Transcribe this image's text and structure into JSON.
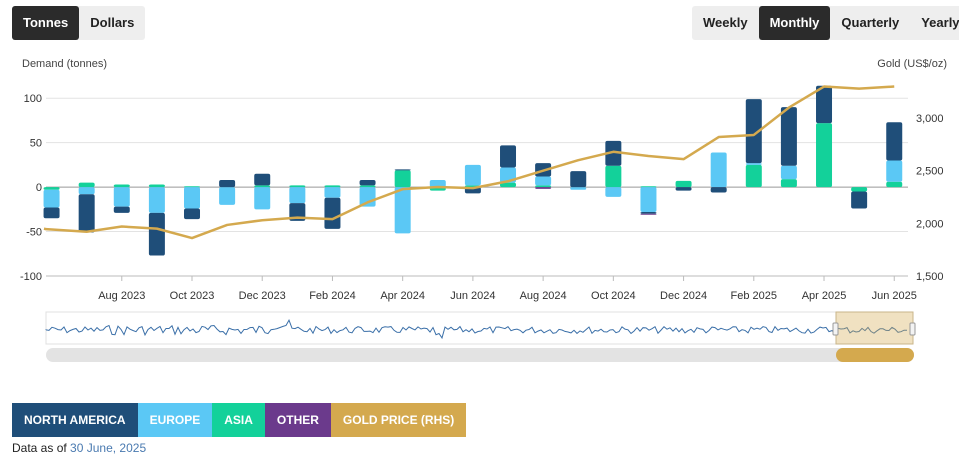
{
  "unit_toggle": {
    "tonnes": "Tonnes",
    "dollars": "Dollars",
    "selected": "Tonnes"
  },
  "period_toggle": {
    "weekly": "Weekly",
    "monthly": "Monthly",
    "quarterly": "Quarterly",
    "yearly": "Yearly",
    "selected": "Monthly"
  },
  "legend": {
    "north_america": "NORTH AMERICA",
    "europe": "EUROPE",
    "asia": "ASIA",
    "other": "OTHER",
    "gold_price": "GOLD PRICE (RHS)"
  },
  "footer": {
    "prefix": "Data as of",
    "date": "30 June, 2025"
  },
  "colors": {
    "north_america": "#1f4e79",
    "europe": "#5bc8f5",
    "asia": "#13d19a",
    "other": "#6b3a8c",
    "gold_price": "#d4a94e"
  },
  "chart_data": {
    "type": "bar",
    "stacked": true,
    "ylabel": "Demand (tonnes)",
    "y2label": "Gold (US$/oz)",
    "ylim": [
      -100,
      125
    ],
    "yticks": [
      -100,
      -50,
      0,
      50,
      100
    ],
    "y2lim": [
      1500,
      3400
    ],
    "y2ticks": [
      1500,
      2000,
      2500,
      3000
    ],
    "y2tick_labels": [
      "1,500",
      "2,000",
      "2,500",
      "3,000"
    ],
    "xtick_labels": [
      "Aug 2023",
      "Oct 2023",
      "Dec 2023",
      "Feb 2024",
      "Apr 2024",
      "Jun 2024",
      "Aug 2024",
      "Oct 2024",
      "Dec 2024",
      "Feb 2025",
      "Apr 2025",
      "Jun 2025"
    ],
    "categories": [
      "Jun 2023",
      "Jul 2023",
      "Aug 2023",
      "Sep 2023",
      "Oct 2023",
      "Nov 2023",
      "Dec 2023",
      "Jan 2024",
      "Feb 2024",
      "Mar 2024",
      "Apr 2024",
      "May 2024",
      "Jun 2024",
      "Jul 2024",
      "Aug 2024",
      "Sep 2024",
      "Oct 2024",
      "Nov 2024",
      "Dec 2024",
      "Jan 2025",
      "Feb 2025",
      "Mar 2025",
      "Apr 2025",
      "May 2025",
      "Jun 2025"
    ],
    "series": [
      {
        "name": "NORTH AMERICA",
        "values": [
          -12,
          -43,
          -7,
          -48,
          -12,
          8,
          13,
          -20,
          -35,
          6,
          1,
          0,
          -7,
          25,
          15,
          18,
          28,
          -2,
          -4,
          -6,
          72,
          66,
          42,
          -19,
          43
        ]
      },
      {
        "name": "EUROPE",
        "values": [
          -20,
          -8,
          -22,
          -29,
          -24,
          -20,
          -25,
          -18,
          -12,
          -22,
          -52,
          8,
          23,
          17,
          10,
          -3,
          -11,
          -28,
          0,
          39,
          2,
          15,
          0,
          0,
          24
        ]
      },
      {
        "name": "ASIA",
        "values": [
          -3,
          5,
          3,
          3,
          1,
          0,
          2,
          2,
          2,
          2,
          19,
          -4,
          2,
          5,
          2,
          0,
          24,
          1,
          7,
          0,
          25,
          9,
          72,
          -5,
          6
        ]
      },
      {
        "name": "OTHER",
        "values": [
          0,
          0,
          0,
          0,
          0,
          0,
          0,
          0,
          0,
          0,
          0,
          0,
          0,
          0,
          -2,
          0,
          0,
          -1,
          0,
          0,
          0,
          0,
          0,
          0,
          0
        ]
      }
    ],
    "gold_price": {
      "name": "GOLD PRICE (RHS)",
      "values": [
        1945,
        1920,
        1970,
        1950,
        1860,
        1985,
        2030,
        2055,
        2040,
        2200,
        2325,
        2345,
        2335,
        2400,
        2500,
        2600,
        2680,
        2640,
        2610,
        2820,
        2840,
        3100,
        3300,
        3280,
        3300
      ]
    },
    "navigator": {
      "range": [
        2016,
        2025
      ]
    },
    "grid": {
      "horizontal": true
    }
  }
}
